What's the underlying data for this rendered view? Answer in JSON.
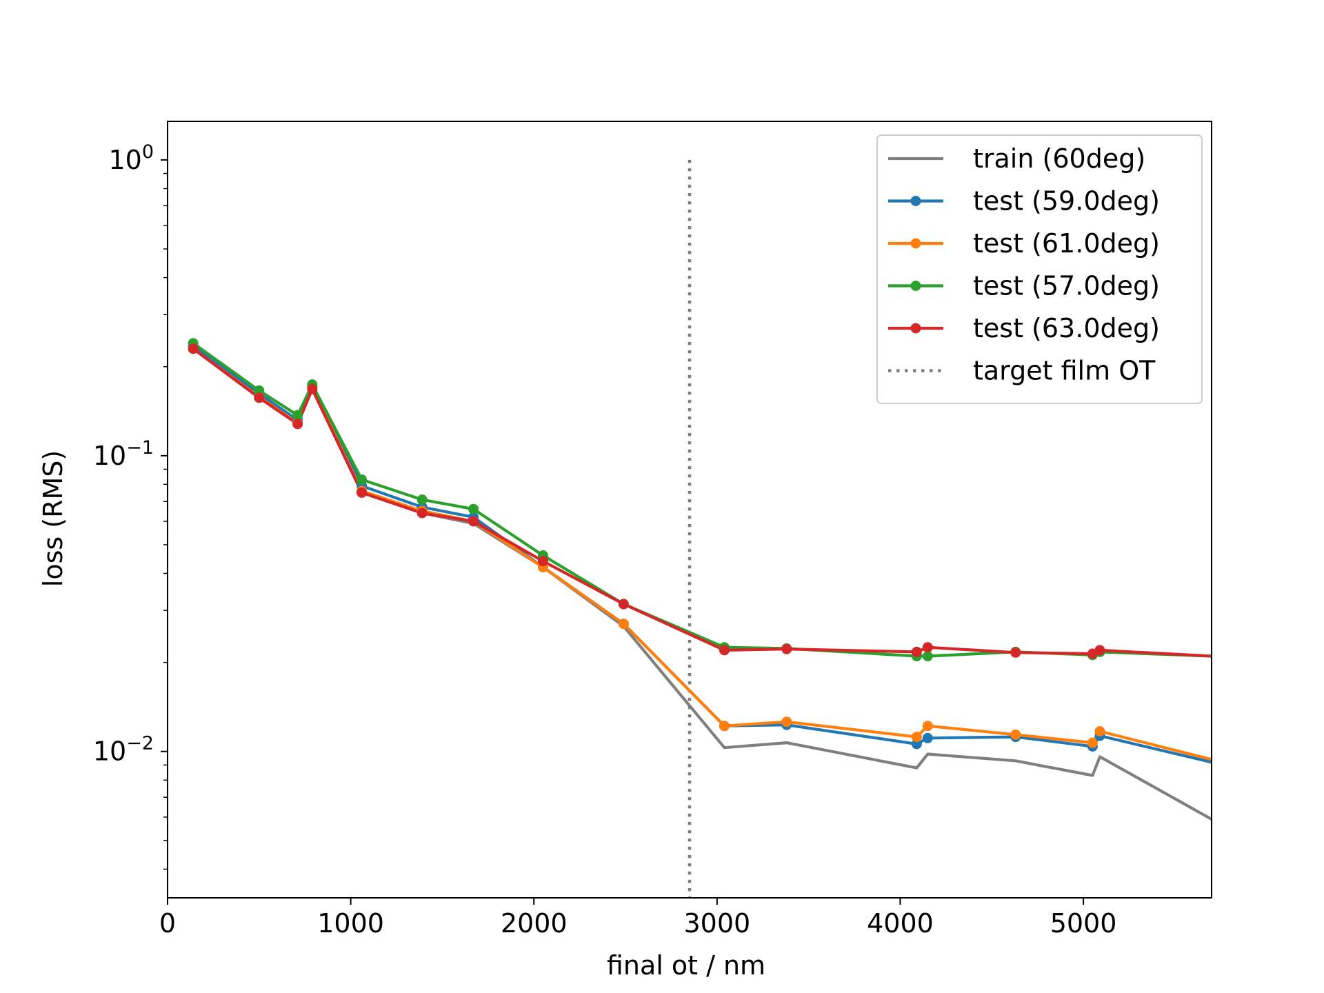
{
  "chart_data": {
    "type": "line",
    "xlabel": "final ot / nm",
    "ylabel": "loss (RMS)",
    "xlim": [
      0,
      5700
    ],
    "ylim": [
      0.0032,
      1.35
    ],
    "yscale": "log",
    "xticks": [
      0,
      1000,
      2000,
      3000,
      4000,
      5000
    ],
    "xtick_labels": [
      "0",
      "1000",
      "2000",
      "3000",
      "4000",
      "5000"
    ],
    "yticks": [
      1,
      0.1,
      0.01
    ],
    "ytick_labels": [
      {
        "base": "10",
        "exp": "0"
      },
      {
        "base": "10",
        "exp": "−1"
      },
      {
        "base": "10",
        "exp": "−2"
      }
    ],
    "grid": false,
    "legend_position": "top-right",
    "series": [
      {
        "name": "train (60deg)",
        "color": "#7f7f7f",
        "markers": false,
        "x": [
          140,
          500,
          710,
          790,
          1060,
          1390,
          1670,
          2050,
          2490,
          3040,
          3380,
          4090,
          4150,
          4630,
          5050,
          5090,
          5700
        ],
        "y": [
          0.23,
          0.157,
          0.128,
          0.168,
          0.075,
          0.064,
          0.059,
          0.042,
          0.0265,
          0.0103,
          0.0107,
          0.0088,
          0.0098,
          0.0093,
          0.0083,
          0.0096,
          0.0059
        ]
      },
      {
        "name": "test (59.0deg)",
        "color": "#1f77b4",
        "markers": true,
        "x": [
          140,
          500,
          710,
          790,
          1060,
          1390,
          1670,
          2050,
          2490,
          3040,
          3380,
          4090,
          4150,
          4630,
          5050,
          5090,
          5700
        ],
        "y": [
          0.235,
          0.162,
          0.132,
          0.171,
          0.079,
          0.067,
          0.062,
          0.042,
          0.027,
          0.0122,
          0.0123,
          0.0106,
          0.0111,
          0.0112,
          0.0104,
          0.0113,
          0.0092
        ]
      },
      {
        "name": "test (61.0deg)",
        "color": "#ff7f0e",
        "markers": true,
        "x": [
          140,
          500,
          710,
          790,
          1060,
          1390,
          1670,
          2050,
          2490,
          3040,
          3380,
          4090,
          4150,
          4630,
          5050,
          5090,
          5700
        ],
        "y": [
          0.23,
          0.158,
          0.129,
          0.169,
          0.076,
          0.065,
          0.06,
          0.042,
          0.027,
          0.0122,
          0.0126,
          0.0112,
          0.0122,
          0.0114,
          0.0107,
          0.0117,
          0.0094
        ]
      },
      {
        "name": "test (57.0deg)",
        "color": "#2ca02c",
        "markers": true,
        "x": [
          140,
          500,
          710,
          790,
          1060,
          1390,
          1670,
          2050,
          2490,
          3040,
          3380,
          4090,
          4150,
          4630,
          5050,
          5090,
          5700
        ],
        "y": [
          0.24,
          0.166,
          0.137,
          0.174,
          0.083,
          0.071,
          0.066,
          0.046,
          0.0315,
          0.0225,
          0.0223,
          0.021,
          0.021,
          0.0217,
          0.0212,
          0.0217,
          0.021
        ]
      },
      {
        "name": "test (63.0deg)",
        "color": "#d62728",
        "markers": true,
        "x": [
          140,
          500,
          710,
          790,
          1060,
          1390,
          1670,
          2050,
          2490,
          3040,
          3380,
          4090,
          4150,
          4630,
          5050,
          5090,
          5700
        ],
        "y": [
          0.23,
          0.157,
          0.128,
          0.168,
          0.075,
          0.064,
          0.06,
          0.044,
          0.0315,
          0.022,
          0.0222,
          0.0217,
          0.0225,
          0.0216,
          0.0214,
          0.022,
          0.021
        ]
      }
    ],
    "reference_lines": [
      {
        "name": "target film OT",
        "orientation": "vertical",
        "x": 2850,
        "y_range": [
          0.0032,
          1.0
        ],
        "color": "#7f7f7f",
        "style": "dotted"
      }
    ]
  }
}
